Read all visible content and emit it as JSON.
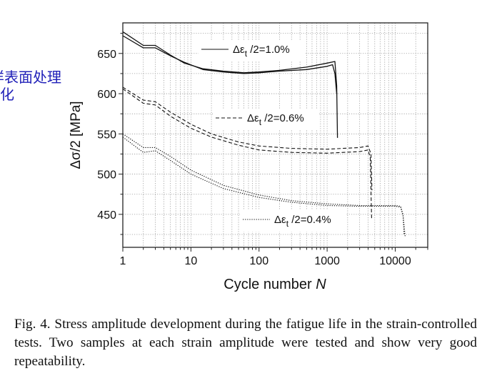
{
  "side_text": {
    "line1": "样表面处理",
    "line2": "化"
  },
  "chart_data": {
    "type": "line",
    "title": "",
    "xlabel": "Cycle number",
    "xlabel_italic": "N",
    "ylabel": "Δσ/2 [MPa]",
    "xscale": "log",
    "xlim": [
      1,
      30000
    ],
    "ylim": [
      409,
      688
    ],
    "grid": true,
    "x_ticks": [
      1,
      10,
      100,
      1000,
      10000
    ],
    "x_tick_labels": [
      "1",
      "10",
      "100",
      "1000",
      "10000"
    ],
    "y_ticks": [
      450,
      500,
      550,
      600,
      650
    ],
    "y_tick_labels": [
      "450",
      "500",
      "550",
      "600",
      "650"
    ],
    "legend_placement": "inline",
    "series": [
      {
        "name": "Δεt/2=1.0%",
        "label_main": "Δε",
        "label_sub": "t",
        "label_rest": " /2=1.0%",
        "style": "solid",
        "sample": 1,
        "x": [
          1,
          2,
          3,
          5,
          8,
          15,
          30,
          60,
          100,
          200,
          500,
          1000,
          1300,
          1380,
          1420
        ],
        "y": [
          677,
          660,
          660,
          648,
          638,
          631,
          628,
          626,
          627,
          629,
          633,
          638,
          640,
          610,
          545
        ]
      },
      {
        "name": "Δεt/2=1.0%",
        "style": "solid",
        "sample": 2,
        "x": [
          1,
          2,
          3,
          5,
          8,
          15,
          30,
          60,
          100,
          200,
          500,
          1000,
          1200,
          1300,
          1380
        ],
        "y": [
          672,
          657,
          657,
          647,
          639,
          630,
          627,
          625,
          626,
          628,
          630,
          634,
          636,
          625,
          600
        ]
      },
      {
        "name": "Δεt/2=0.6%",
        "label_main": "Δε",
        "label_sub": "t",
        "label_rest": " /2=0.6%",
        "style": "dashed",
        "sample": 1,
        "x": [
          1,
          2,
          3,
          5,
          10,
          20,
          50,
          100,
          300,
          1000,
          3000,
          4000,
          4400,
          4550
        ],
        "y": [
          608,
          592,
          590,
          577,
          562,
          550,
          540,
          535,
          532,
          531,
          533,
          535,
          525,
          480
        ]
      },
      {
        "name": "Δεt/2=0.6%",
        "style": "dashed",
        "sample": 2,
        "x": [
          1,
          2,
          3,
          5,
          10,
          20,
          50,
          100,
          300,
          1000,
          3000,
          4000,
          4300,
          4500
        ],
        "y": [
          606,
          588,
          586,
          572,
          557,
          546,
          536,
          530,
          527,
          526,
          528,
          530,
          520,
          445
        ]
      },
      {
        "name": "Δεt/2=0.4%",
        "label_main": "Δε",
        "label_sub": "t",
        "label_rest": " /2=0.4%",
        "style": "dotted",
        "sample": 1,
        "x": [
          1,
          2,
          3,
          5,
          10,
          30,
          100,
          300,
          1000,
          3000,
          10000,
          12000,
          13000,
          14000
        ],
        "y": [
          550,
          533,
          533,
          522,
          505,
          486,
          474,
          467,
          463,
          461,
          461,
          460,
          450,
          422
        ]
      },
      {
        "name": "Δεt/2=0.4%",
        "style": "dotted",
        "sample": 2,
        "x": [
          1,
          2,
          3,
          5,
          10,
          30,
          100,
          300,
          1000,
          3000,
          10000,
          12000,
          13000,
          13500
        ],
        "y": [
          546,
          527,
          529,
          517,
          500,
          482,
          471,
          465,
          461,
          460,
          460,
          459,
          448,
          425
        ]
      }
    ]
  },
  "caption": {
    "text": "Fig. 4. Stress amplitude development during the fatigue life in the strain-controlled tests. Two samples at each strain amplitude were tested and show very good repeatability."
  }
}
